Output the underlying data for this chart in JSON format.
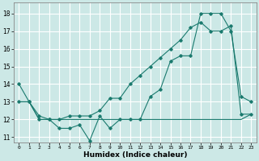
{
  "xlabel": "Humidex (Indice chaleur)",
  "bg_color": "#cce8e6",
  "grid_color": "#ffffff",
  "line_color": "#1a7a6e",
  "xlim": [
    -0.5,
    23.5
  ],
  "ylim": [
    10.7,
    18.6
  ],
  "yticks": [
    11,
    12,
    13,
    14,
    15,
    16,
    17,
    18
  ],
  "xticks": [
    0,
    1,
    2,
    3,
    4,
    5,
    6,
    7,
    8,
    9,
    10,
    11,
    12,
    13,
    14,
    15,
    16,
    17,
    18,
    19,
    20,
    21,
    22,
    23
  ],
  "line1_x": [
    0,
    1,
    2,
    3,
    4,
    5,
    6,
    7,
    8,
    9,
    10,
    11,
    12,
    13,
    14,
    15,
    16,
    17,
    18,
    19,
    20,
    21,
    22,
    23
  ],
  "line1_y": [
    14,
    13,
    12,
    12,
    11.5,
    11.5,
    11.7,
    10.8,
    12.2,
    11.5,
    12,
    12,
    12,
    13.3,
    13.7,
    15.3,
    15.6,
    15.6,
    18,
    18,
    18,
    17,
    13.3,
    13
  ],
  "line2_x": [
    0,
    1,
    2,
    3,
    4,
    5,
    6,
    7,
    8,
    9,
    10,
    11,
    12,
    13,
    14,
    15,
    16,
    17,
    18,
    19,
    20,
    21,
    22,
    23
  ],
  "line2_y": [
    13,
    13,
    12,
    12,
    12,
    12,
    12,
    12,
    12,
    12,
    12,
    12,
    12,
    12,
    12,
    12,
    12,
    12,
    12,
    12,
    12,
    12,
    12,
    12.3
  ],
  "line3_x": [
    0,
    1,
    2,
    3,
    4,
    5,
    6,
    7,
    8,
    9,
    10,
    11,
    12,
    13,
    14,
    15,
    16,
    17,
    18,
    19,
    20,
    21,
    22,
    23
  ],
  "line3_y": [
    13,
    13,
    12.2,
    12,
    12,
    12.2,
    12.2,
    12.2,
    12.5,
    13.2,
    13.2,
    14,
    14.5,
    15,
    15.5,
    16,
    16.5,
    17.2,
    17.5,
    17,
    17,
    17.3,
    12.3,
    12.3
  ]
}
